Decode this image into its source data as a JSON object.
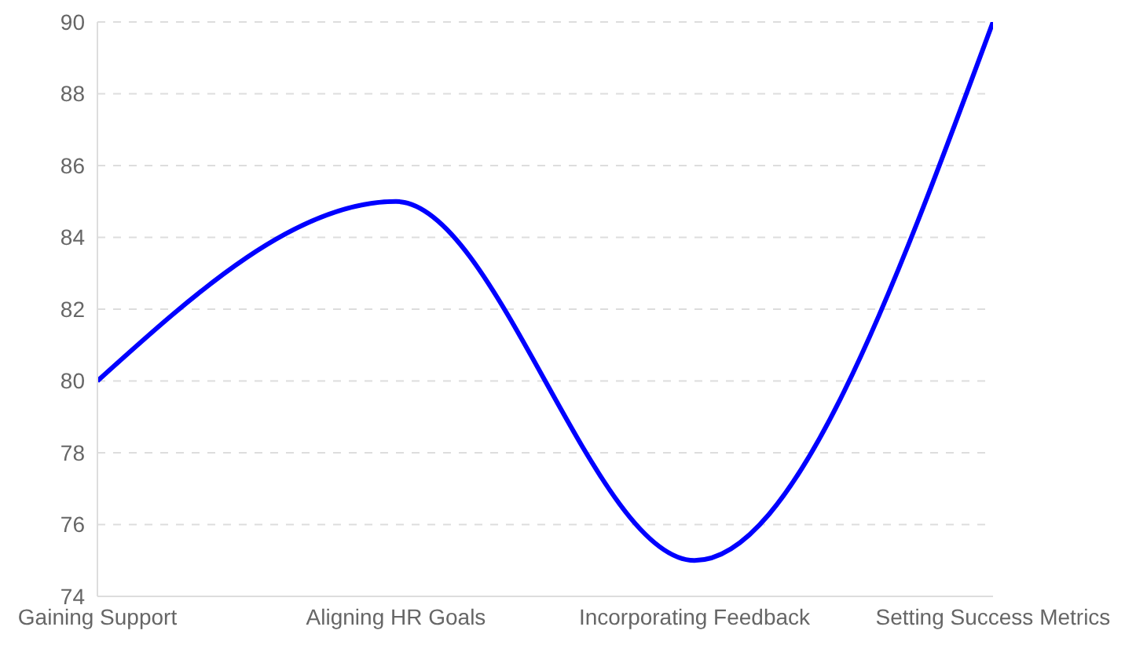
{
  "chart_data": {
    "type": "line",
    "categories": [
      "Gaining Support",
      "Aligning HR Goals",
      "Incorporating Feedback",
      "Setting Success Metrics"
    ],
    "series": [
      {
        "color": "#0000ff",
        "values": [
          80,
          85,
          75,
          90
        ]
      }
    ],
    "ylim": [
      74,
      90
    ],
    "yticks": [
      74,
      76,
      78,
      80,
      82,
      84,
      86,
      88,
      90
    ],
    "grid": "y",
    "marker": "none",
    "line_style": "solid"
  }
}
